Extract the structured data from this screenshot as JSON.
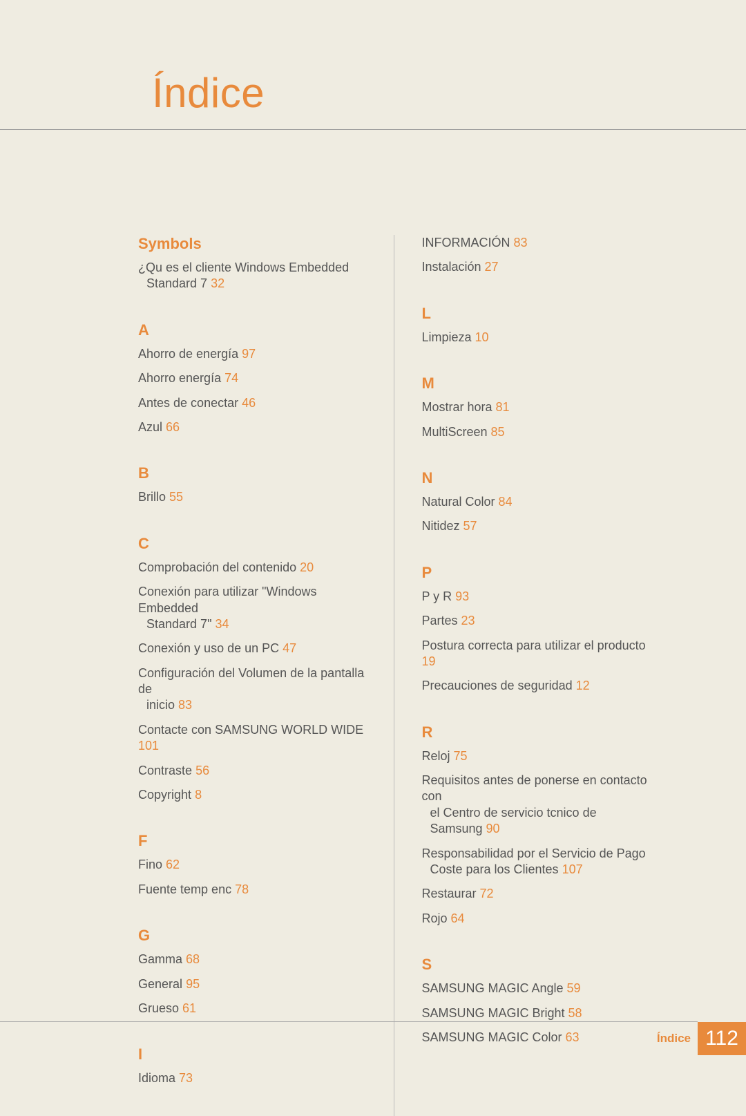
{
  "page": {
    "title": "Índice",
    "background_color": "#efece1",
    "accent_color": "#e88a3c",
    "text_color": "#555555",
    "title_fontsize": 60,
    "section_head_fontsize": 22,
    "entry_fontsize": 18
  },
  "columns": [
    {
      "sections": [
        {
          "head": "Symbols",
          "entries": [
            {
              "text": "¿Qu es el cliente Windows Embedded",
              "cont": "Standard 7",
              "page": "32"
            }
          ]
        },
        {
          "head": "A",
          "entries": [
            {
              "text": "Ahorro de energía",
              "page": "97"
            },
            {
              "text": "Ahorro energía",
              "page": "74"
            },
            {
              "text": "Antes de conectar",
              "page": "46"
            },
            {
              "text": "Azul",
              "page": "66"
            }
          ]
        },
        {
          "head": "B",
          "entries": [
            {
              "text": "Brillo",
              "page": "55"
            }
          ]
        },
        {
          "head": "C",
          "entries": [
            {
              "text": "Comprobación del contenido",
              "page": "20"
            },
            {
              "text": "Conexión para utilizar \"Windows Embedded",
              "cont": "Standard 7\"",
              "page": "34"
            },
            {
              "text": "Conexión y uso de un PC",
              "page": "47"
            },
            {
              "text": "Configuración del Volumen de la pantalla de",
              "cont": "inicio",
              "page": "83"
            },
            {
              "text": "Contacte con SAMSUNG WORLD WIDE",
              "page": "101"
            },
            {
              "text": "Contraste",
              "page": "56"
            },
            {
              "text": "Copyright",
              "page": "8"
            }
          ]
        },
        {
          "head": "F",
          "entries": [
            {
              "text": "Fino",
              "page": "62"
            },
            {
              "text": "Fuente temp enc",
              "page": "78"
            }
          ]
        },
        {
          "head": "G",
          "entries": [
            {
              "text": "Gamma",
              "page": "68"
            },
            {
              "text": "General",
              "page": "95"
            },
            {
              "text": "Grueso",
              "page": "61"
            }
          ]
        },
        {
          "head": "I",
          "entries": [
            {
              "text": "Idioma",
              "page": "73"
            }
          ]
        }
      ]
    },
    {
      "sections": [
        {
          "head": "",
          "entries": [
            {
              "text": "INFORMACIÓN",
              "page": "83"
            },
            {
              "text": "Instalación",
              "page": "27"
            }
          ]
        },
        {
          "head": "L",
          "entries": [
            {
              "text": "Limpieza",
              "page": "10"
            }
          ]
        },
        {
          "head": "M",
          "entries": [
            {
              "text": "Mostrar hora",
              "page": "81"
            },
            {
              "text": "MultiScreen",
              "page": "85"
            }
          ]
        },
        {
          "head": "N",
          "entries": [
            {
              "text": "Natural Color",
              "page": "84"
            },
            {
              "text": "Nitidez",
              "page": "57"
            }
          ]
        },
        {
          "head": "P",
          "entries": [
            {
              "text": "P y R",
              "page": "93"
            },
            {
              "text": "Partes",
              "page": "23"
            },
            {
              "text": "Postura correcta para utilizar el producto",
              "page": "19"
            },
            {
              "text": "Precauciones de seguridad",
              "page": "12"
            }
          ]
        },
        {
          "head": "R",
          "entries": [
            {
              "text": "Reloj",
              "page": "75"
            },
            {
              "text": "Requisitos antes de ponerse en contacto con",
              "cont": "el Centro de servicio tcnico de Samsung",
              "page": "90"
            },
            {
              "text": "Responsabilidad por el Servicio de Pago",
              "cont": "Coste para los Clientes",
              "page": "107"
            },
            {
              "text": "Restaurar",
              "page": "72"
            },
            {
              "text": "Rojo",
              "page": "64"
            }
          ]
        },
        {
          "head": "S",
          "entries": [
            {
              "text": "SAMSUNG MAGIC Angle",
              "page": "59"
            },
            {
              "text": "SAMSUNG MAGIC Bright",
              "page": "58"
            },
            {
              "text": "SAMSUNG MAGIC Color",
              "page": "63"
            }
          ]
        }
      ]
    }
  ],
  "footer": {
    "label": "Índice",
    "page_number": "112"
  }
}
